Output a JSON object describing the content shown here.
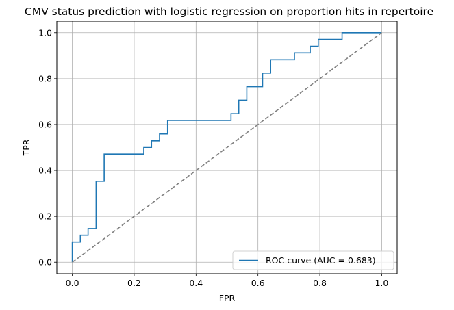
{
  "chart_data": {
    "type": "line",
    "title": "CMV status prediction with logistic regression on proportion hits in repertoire",
    "xlabel": "FPR",
    "ylabel": "TPR",
    "xlim": [
      -0.05,
      1.05
    ],
    "ylim": [
      -0.05,
      1.05
    ],
    "xticks": [
      0.0,
      0.2,
      0.4,
      0.6,
      0.8,
      1.0
    ],
    "yticks": [
      0.0,
      0.2,
      0.4,
      0.6,
      0.8,
      1.0
    ],
    "xtick_labels": [
      "0.0",
      "0.2",
      "0.4",
      "0.6",
      "0.8",
      "1.0"
    ],
    "ytick_labels": [
      "0.0",
      "0.2",
      "0.4",
      "0.6",
      "0.8",
      "1.0"
    ],
    "grid": true,
    "legend_position": "lower-right",
    "series": [
      {
        "name": "ROC curve (AUC = 0.683)",
        "color": "#1f77b4",
        "style": "solid",
        "x": [
          0.0,
          0.0,
          0.026,
          0.026,
          0.051,
          0.051,
          0.077,
          0.077,
          0.103,
          0.103,
          0.231,
          0.231,
          0.256,
          0.256,
          0.282,
          0.282,
          0.308,
          0.308,
          0.513,
          0.513,
          0.538,
          0.538,
          0.564,
          0.564,
          0.615,
          0.615,
          0.641,
          0.641,
          0.718,
          0.718,
          0.769,
          0.769,
          0.795,
          0.795,
          0.872,
          0.872,
          1.0
        ],
        "y": [
          0.0,
          0.088,
          0.088,
          0.118,
          0.118,
          0.147,
          0.147,
          0.353,
          0.353,
          0.471,
          0.471,
          0.5,
          0.5,
          0.529,
          0.529,
          0.559,
          0.559,
          0.618,
          0.618,
          0.647,
          0.647,
          0.706,
          0.706,
          0.765,
          0.765,
          0.824,
          0.824,
          0.882,
          0.882,
          0.912,
          0.912,
          0.941,
          0.941,
          0.971,
          0.971,
          1.0,
          1.0
        ]
      },
      {
        "name": "",
        "color": "#808080",
        "style": "dashed",
        "x": [
          0.0,
          1.0
        ],
        "y": [
          0.0,
          1.0
        ]
      }
    ]
  }
}
